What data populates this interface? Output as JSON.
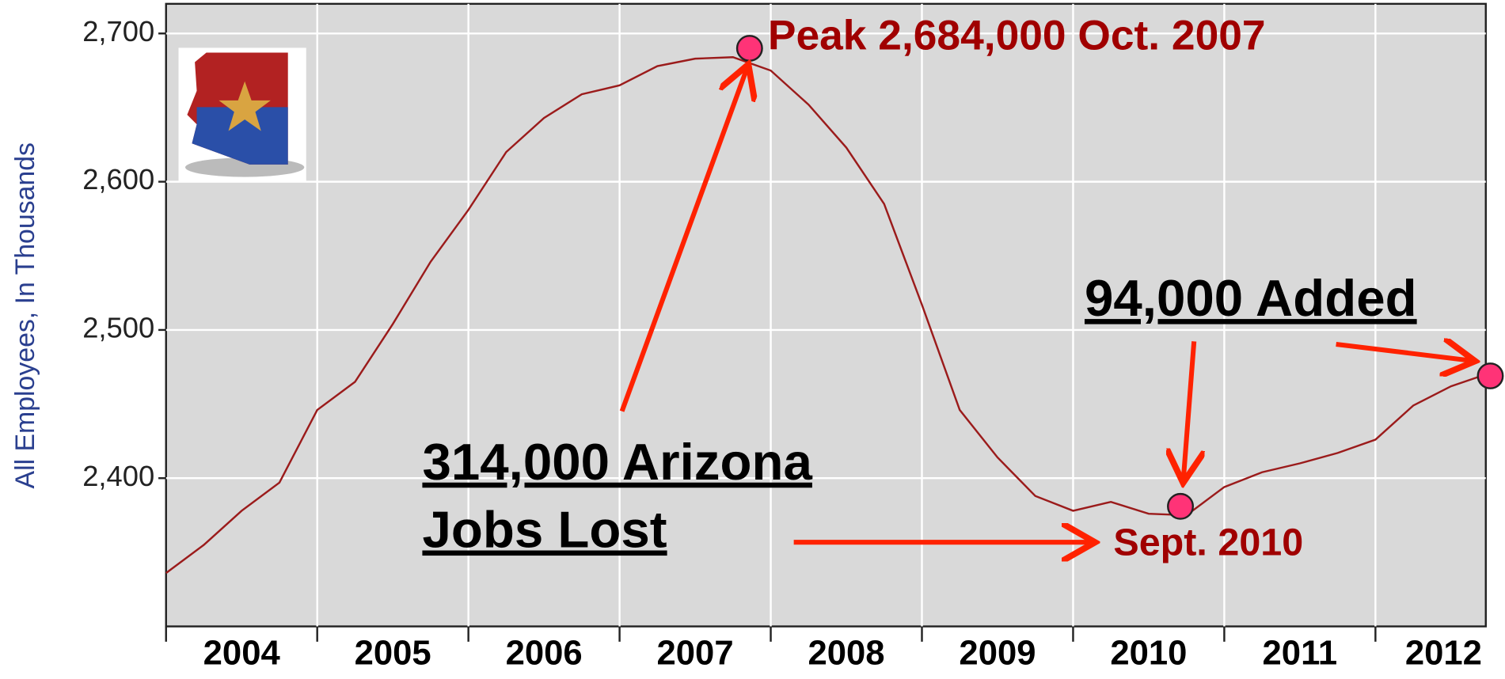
{
  "chart_data": {
    "type": "line",
    "y_label": "All Employees, In Thousands",
    "xlim": [
      2004,
      2012.73
    ],
    "ylim": [
      2300,
      2720
    ],
    "xticks": [
      {
        "value": 2004,
        "label": "2004"
      },
      {
        "value": 2005,
        "label": "2005"
      },
      {
        "value": 2006,
        "label": "2006"
      },
      {
        "value": 2007,
        "label": "2007"
      },
      {
        "value": 2008,
        "label": "2008"
      },
      {
        "value": 2009,
        "label": "2009"
      },
      {
        "value": 2010,
        "label": "2010"
      },
      {
        "value": 2011,
        "label": "2011"
      },
      {
        "value": 2012,
        "label": "2012"
      }
    ],
    "yticks": [
      {
        "value": 2400,
        "label": "2,400"
      },
      {
        "value": 2500,
        "label": "2,500"
      },
      {
        "value": 2600,
        "label": "2,600"
      },
      {
        "value": 2700,
        "label": "2,700"
      }
    ],
    "grid": true,
    "series": [
      {
        "color": "#9b1b1b",
        "x": [
          2004,
          2004.25,
          2004.5,
          2004.75,
          2005,
          2005.25,
          2005.5,
          2005.75,
          2006,
          2006.25,
          2006.5,
          2006.75,
          2007,
          2007.25,
          2007.5,
          2007.75,
          2008,
          2008.25,
          2008.5,
          2008.75,
          2009,
          2009.25,
          2009.5,
          2009.75,
          2010,
          2010.25,
          2010.5,
          2010.75,
          2011,
          2011.25,
          2011.5,
          2011.75,
          2012,
          2012.25,
          2012.5,
          2012.73
        ],
        "values": [
          2336,
          2355,
          2378,
          2397,
          2446,
          2465,
          2504,
          2546,
          2581,
          2620,
          2643,
          2659,
          2665,
          2678,
          2683,
          2684,
          2675,
          2652,
          2623,
          2585,
          2517,
          2446,
          2414,
          2388,
          2378,
          2384,
          2376,
          2375,
          2394,
          2404,
          2410,
          2417,
          2426,
          2449,
          2462,
          2470
        ]
      }
    ],
    "markers": {
      "color": "#ff3377",
      "x": [
        2007.86,
        2010.71,
        2012.76
      ],
      "values": [
        2690,
        2381,
        2469
      ]
    },
    "annotations": {
      "peak": "Peak 2,684,000 Oct. 2007",
      "added": "94,000 Added",
      "lost": [
        "314,000 Arizona",
        "Jobs Lost"
      ],
      "trough": "Sept. 2010"
    }
  }
}
